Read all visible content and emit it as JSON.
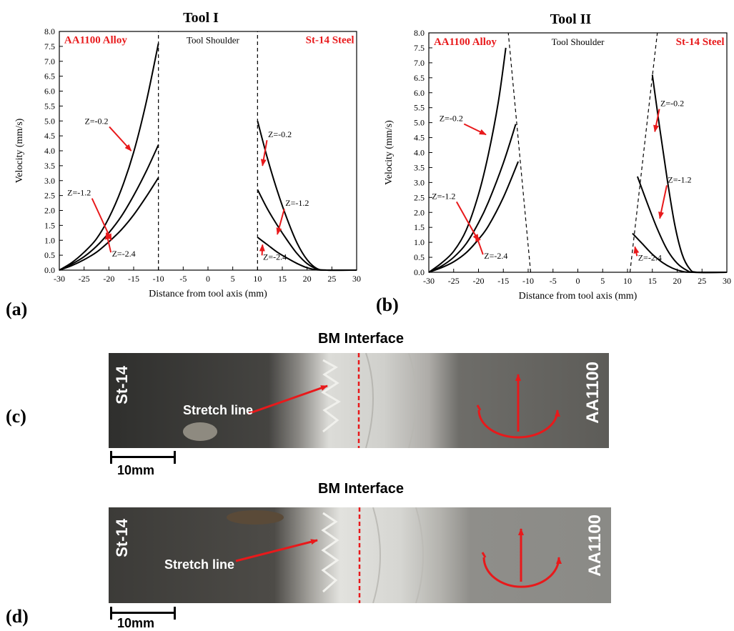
{
  "chart_data": [
    {
      "type": "line",
      "title": "Tool I",
      "xlabel": "Distance from tool axis (mm)",
      "ylabel": "Velocity (mm/s)",
      "xlim": [
        -30,
        30
      ],
      "ylim": [
        0,
        8
      ],
      "xticks": [
        "-30",
        "-25",
        "-20",
        "-15",
        "-10",
        "-5",
        "0",
        "5",
        "10",
        "15",
        "20",
        "25",
        "30"
      ],
      "yticks": [
        "0.0",
        "0.5",
        "1.0",
        "1.5",
        "2.0",
        "2.5",
        "3.0",
        "3.5",
        "4.0",
        "4.5",
        "5.0",
        "5.5",
        "6.0",
        "6.5",
        "7.0",
        "7.5",
        "8.0"
      ],
      "grid": false,
      "region_labels": {
        "left": "AA1100 Alloy",
        "middle": "Tool Shoulder",
        "right": "St-14 Steel"
      },
      "shoulder_boundaries": [
        [
          [
            -10,
            0
          ],
          [
            -10,
            8
          ]
        ],
        [
          [
            10,
            0
          ],
          [
            10,
            8
          ]
        ]
      ],
      "series": [
        {
          "label": "Z=-0.2",
          "side": "left",
          "x": [
            -30,
            -27.5,
            -25,
            -22.5,
            -20,
            -17.5,
            -15,
            -12.5,
            -10
          ],
          "y": [
            0,
            0.25,
            0.6,
            1.05,
            1.75,
            2.7,
            3.95,
            5.6,
            7.6
          ]
        },
        {
          "label": "Z=-1.2",
          "side": "left",
          "x": [
            -30,
            -27.5,
            -25,
            -22.5,
            -20,
            -17.5,
            -15,
            -12.5,
            -10
          ],
          "y": [
            0,
            0.2,
            0.45,
            0.8,
            1.25,
            1.8,
            2.5,
            3.3,
            4.2
          ]
        },
        {
          "label": "Z=-2.4",
          "side": "left",
          "x": [
            -30,
            -27.5,
            -25,
            -22.5,
            -20,
            -17.5,
            -15,
            -12.5,
            -10
          ],
          "y": [
            0,
            0.15,
            0.35,
            0.6,
            0.95,
            1.35,
            1.85,
            2.45,
            3.1
          ]
        },
        {
          "label": "Z=-0.2",
          "side": "right",
          "x": [
            10,
            12,
            14,
            16,
            18,
            20,
            22,
            24,
            30
          ],
          "y": [
            5.0,
            3.75,
            2.65,
            1.7,
            0.9,
            0.35,
            0.05,
            0,
            0
          ]
        },
        {
          "label": "Z=-1.2",
          "side": "right",
          "x": [
            10,
            12,
            14,
            16,
            18,
            20,
            22,
            24,
            30
          ],
          "y": [
            2.7,
            2.05,
            1.5,
            1.0,
            0.55,
            0.22,
            0.04,
            0,
            0
          ]
        },
        {
          "label": "Z=-2.4",
          "side": "right",
          "x": [
            10,
            12,
            14,
            16,
            18,
            20,
            22,
            24,
            30
          ],
          "y": [
            1.1,
            0.85,
            0.6,
            0.4,
            0.22,
            0.08,
            0.01,
            0,
            0
          ]
        }
      ],
      "annotations": [
        {
          "text": "Z=-0.2",
          "at": [
            -22.5,
            4.9
          ],
          "arrow_to": [
            -15.5,
            4.0
          ]
        },
        {
          "text": "Z=-1.2",
          "at": [
            -26,
            2.5
          ],
          "arrow_to": [
            -19.5,
            1.0
          ]
        },
        {
          "text": "Z=-2.4",
          "at": [
            -17,
            0.45
          ],
          "arrow_to": [
            -20.5,
            1.25
          ]
        },
        {
          "text": "Z=-0.2",
          "at": [
            14.5,
            4.45
          ],
          "arrow_to": [
            11,
            3.5
          ]
        },
        {
          "text": "Z=-1.2",
          "at": [
            18,
            2.15
          ],
          "arrow_to": [
            14,
            1.2
          ]
        },
        {
          "text": "Z=-2.4",
          "at": [
            13.5,
            0.35
          ],
          "arrow_to": [
            11,
            0.85
          ]
        }
      ],
      "panel": "(a)"
    },
    {
      "type": "line",
      "title": "Tool II",
      "xlabel": "Distance from tool axis (mm)",
      "ylabel": "Velocity (mm/s)",
      "xlim": [
        -30,
        30
      ],
      "ylim": [
        0,
        8
      ],
      "xticks": [
        "-30",
        "-25",
        "-20",
        "-15",
        "-10",
        "-5",
        "0",
        "5",
        "10",
        "15",
        "20",
        "25",
        "30"
      ],
      "yticks": [
        "0.0",
        "0.5",
        "1.0",
        "1.5",
        "2.0",
        "2.5",
        "3.0",
        "3.5",
        "4.0",
        "4.5",
        "5.0",
        "5.5",
        "6.0",
        "6.5",
        "7.0",
        "7.5",
        "8.0"
      ],
      "grid": false,
      "region_labels": {
        "left": "AA1100 Alloy",
        "middle": "Tool Shoulder",
        "right": "St-14 Steel"
      },
      "shoulder_boundaries": [
        [
          [
            -9.5,
            0
          ],
          [
            -14,
            8
          ]
        ],
        [
          [
            10.5,
            0
          ],
          [
            16,
            8
          ]
        ]
      ],
      "series": [
        {
          "label": "Z=-0.2",
          "side": "left",
          "x": [
            -30,
            -27.5,
            -25,
            -22.5,
            -20,
            -18,
            -16,
            -14.5
          ],
          "y": [
            0,
            0.3,
            0.7,
            1.4,
            2.6,
            3.95,
            5.7,
            7.5
          ]
        },
        {
          "label": "Z=-1.2",
          "side": "left",
          "x": [
            -30,
            -27.5,
            -25,
            -22.5,
            -20,
            -18,
            -15,
            -12.5
          ],
          "y": [
            0,
            0.2,
            0.5,
            0.95,
            1.65,
            2.35,
            3.65,
            4.95
          ]
        },
        {
          "label": "Z=-2.4",
          "side": "left",
          "x": [
            -30,
            -27.5,
            -25,
            -22.5,
            -20,
            -18,
            -15,
            -12
          ],
          "y": [
            0,
            0.15,
            0.35,
            0.65,
            1.1,
            1.55,
            2.5,
            3.7
          ]
        },
        {
          "label": "Z=-0.2",
          "side": "right",
          "x": [
            15,
            16.5,
            18,
            19.5,
            21,
            22.5,
            24,
            30
          ],
          "y": [
            6.6,
            4.8,
            3.1,
            1.6,
            0.6,
            0.12,
            0,
            0
          ]
        },
        {
          "label": "Z=-1.2",
          "side": "right",
          "x": [
            12,
            14,
            16,
            18,
            20,
            22,
            23.5,
            30
          ],
          "y": [
            3.2,
            2.3,
            1.45,
            0.75,
            0.3,
            0.06,
            0,
            0
          ]
        },
        {
          "label": "Z=-2.4",
          "side": "right",
          "x": [
            11,
            13,
            15,
            17,
            19,
            21,
            23,
            30
          ],
          "y": [
            1.3,
            0.95,
            0.6,
            0.33,
            0.14,
            0.03,
            0,
            0
          ]
        }
      ],
      "annotations": [
        {
          "text": "Z=-0.2",
          "at": [
            -25.5,
            5.05
          ],
          "arrow_to": [
            -18.5,
            4.6
          ]
        },
        {
          "text": "Z=-1.2",
          "at": [
            -27,
            2.45
          ],
          "arrow_to": [
            -20,
            1.05
          ]
        },
        {
          "text": "Z=-2.4",
          "at": [
            -16.5,
            0.45
          ],
          "arrow_to": [
            -20.5,
            1.25
          ]
        },
        {
          "text": "Z=-0.2",
          "at": [
            19,
            5.55
          ],
          "arrow_to": [
            15.5,
            4.7
          ]
        },
        {
          "text": "Z=-1.2",
          "at": [
            20.5,
            3.0
          ],
          "arrow_to": [
            16.5,
            1.8
          ]
        },
        {
          "text": "Z=-2.4",
          "at": [
            14.5,
            0.4
          ],
          "arrow_to": [
            11.5,
            0.85
          ]
        }
      ],
      "panel": "(b)"
    }
  ],
  "photos": [
    {
      "panel": "(c)",
      "title": "BM Interface",
      "left_label": "St-14",
      "right_label": "AA1100",
      "stretch_label": "Stretch line",
      "scale_label": "10mm"
    },
    {
      "panel": "(d)",
      "title": "BM Interface",
      "left_label": "St-14",
      "right_label": "AA1100",
      "stretch_label": "Stretch line",
      "scale_label": "10mm"
    }
  ],
  "colors": {
    "axis": "#000000",
    "curve": "#000000",
    "accent": "#e8191b",
    "photo_dark": "#3a3a38",
    "photo_light": "#c9c9c6"
  }
}
